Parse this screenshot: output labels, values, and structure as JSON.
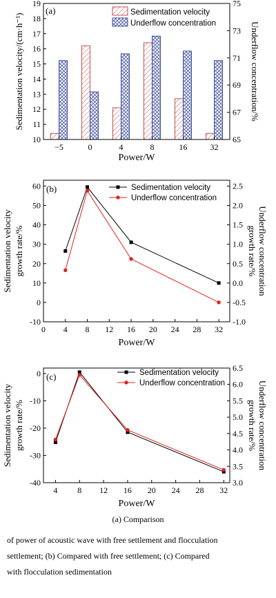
{
  "chart_data": [
    {
      "type": "bar",
      "panel_label": "(a)",
      "xlabel": "Power/W",
      "ylabel_left": "Sedimentation velocity/(cm·h⁻¹)",
      "ylabel_right": "Underflow concentration/%",
      "categories": [
        "−5",
        "0",
        "4",
        "8",
        "16",
        "32"
      ],
      "ylim_left": [
        10,
        19
      ],
      "yticks_left": [
        10,
        11,
        12,
        13,
        14,
        15,
        16,
        17,
        18,
        19
      ],
      "ylim_right": [
        65,
        75
      ],
      "yticks_right": [
        65,
        67,
        69,
        71,
        73,
        75
      ],
      "series": [
        {
          "name": "Sedimentation velocity",
          "axis": "left",
          "color": "#c0504d",
          "pattern": "hatch",
          "values": [
            10.4,
            16.2,
            12.1,
            16.4,
            12.7,
            10.4
          ]
        },
        {
          "name": "Underflow concentration",
          "axis": "right",
          "color": "#4050a0",
          "pattern": "crosshatch",
          "values": [
            70.8,
            68.5,
            71.3,
            72.6,
            71.5,
            70.8
          ]
        }
      ],
      "legend": "top-right"
    },
    {
      "type": "line",
      "panel_label": "(b)",
      "xlabel": "Power/W",
      "ylabel_left_lines": [
        "Sedimentation velocity",
        "growth rate/%"
      ],
      "ylabel_right_lines": [
        "Underflow concentration",
        "growth rate/%"
      ],
      "xlim": [
        0,
        34
      ],
      "xticks": [
        0,
        4,
        8,
        12,
        16,
        20,
        24,
        28,
        32
      ],
      "ylim_left": [
        -10,
        63
      ],
      "yticks_left": [
        -10,
        0,
        10,
        20,
        30,
        40,
        50,
        60
      ],
      "ylim_right": [
        -1.0,
        2.65
      ],
      "yticks_right": [
        "-1.0",
        "-0.5",
        "0.0",
        "0.5",
        "1.0",
        "1.5",
        "2.0",
        "2.5"
      ],
      "series": [
        {
          "name": "Sedimentation velocity",
          "axis": "left",
          "color": "#000000",
          "marker": "square",
          "x": [
            4,
            8,
            16,
            32
          ],
          "y": [
            26.5,
            59.5,
            31,
            10
          ]
        },
        {
          "name": "Underflow concentration",
          "axis": "right",
          "color": "#e02020",
          "marker": "circle",
          "x": [
            4,
            8,
            16,
            32
          ],
          "y": [
            0.33,
            2.38,
            0.62,
            -0.5
          ]
        }
      ],
      "legend": "top-right"
    },
    {
      "type": "line",
      "panel_label": "(c)",
      "xlabel": "Power/W",
      "ylabel_left_lines": [
        "Sedimentation velocity",
        "growth rate/%"
      ],
      "ylabel_right_lines": [
        "Underflow concentration",
        "growth rate/%"
      ],
      "xlim": [
        2,
        33
      ],
      "xticks": [
        4,
        8,
        12,
        16,
        20,
        24,
        28,
        32
      ],
      "ylim_left": [
        -40,
        2
      ],
      "yticks_left": [
        -40,
        -30,
        -20,
        -10,
        0
      ],
      "ylim_right": [
        3.0,
        6.5
      ],
      "yticks_right": [
        "3.0",
        "3.5",
        "4.0",
        "4.5",
        "5.0",
        "5.5",
        "6.0",
        "6.5"
      ],
      "series": [
        {
          "name": "Sedimentation velocity",
          "axis": "left",
          "color": "#000000",
          "marker": "square",
          "x": [
            4,
            8,
            16,
            32
          ],
          "y": [
            -25.2,
            0.5,
            -21.5,
            -36
          ]
        },
        {
          "name": "Underflow concentration",
          "axis": "left",
          "color": "#e02020",
          "marker": "circle",
          "x": [
            4,
            8,
            16,
            32
          ],
          "y": [
            -24.2,
            -0.5,
            -20.7,
            -35.3
          ]
        }
      ],
      "legend": "top-right"
    }
  ],
  "caption": {
    "line1": "(a) Comparison",
    "line2": "of power of acoustic wave with free settlement and flocculation",
    "line3": "settlement; (b) Compared with free settlement; (c) Compared",
    "line4": "with flocculation sedimentation"
  }
}
